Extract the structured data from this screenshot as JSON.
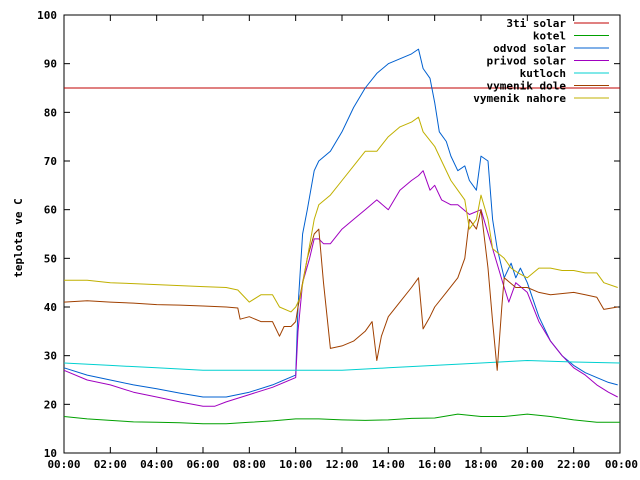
{
  "chart_data": {
    "type": "line",
    "title": "",
    "xlabel": "",
    "ylabel": "teplota ve C",
    "xlim": [
      0,
      24
    ],
    "ylim": [
      10,
      100
    ],
    "x_ticks": [
      {
        "value": 0,
        "label": "00:00"
      },
      {
        "value": 2,
        "label": "02:00"
      },
      {
        "value": 4,
        "label": "04:00"
      },
      {
        "value": 6,
        "label": "06:00"
      },
      {
        "value": 8,
        "label": "08:00"
      },
      {
        "value": 10,
        "label": "10:00"
      },
      {
        "value": 12,
        "label": "12:00"
      },
      {
        "value": 14,
        "label": "14:00"
      },
      {
        "value": 16,
        "label": "16:00"
      },
      {
        "value": 18,
        "label": "18:00"
      },
      {
        "value": 20,
        "label": "20:00"
      },
      {
        "value": 22,
        "label": "22:00"
      },
      {
        "value": 24,
        "label": "00:00"
      }
    ],
    "y_ticks": [
      10,
      20,
      30,
      40,
      50,
      60,
      70,
      80,
      90,
      100
    ],
    "grid": false,
    "legend": "top-right",
    "series": [
      {
        "name": "3ti solar",
        "color": "#c00000",
        "points": [
          [
            0,
            85
          ],
          [
            24,
            85
          ]
        ]
      },
      {
        "name": "kotel",
        "color": "#00a000",
        "points": [
          [
            0,
            17.5
          ],
          [
            1,
            17
          ],
          [
            2,
            16.7
          ],
          [
            3,
            16.4
          ],
          [
            4,
            16.3
          ],
          [
            5,
            16.2
          ],
          [
            6,
            16
          ],
          [
            7,
            16
          ],
          [
            8,
            16.3
          ],
          [
            9,
            16.6
          ],
          [
            10,
            17
          ],
          [
            11,
            17
          ],
          [
            12,
            16.8
          ],
          [
            13,
            16.7
          ],
          [
            14,
            16.8
          ],
          [
            15,
            17.1
          ],
          [
            16,
            17.2
          ],
          [
            17,
            18
          ],
          [
            18,
            17.5
          ],
          [
            19,
            17.5
          ],
          [
            20,
            18
          ],
          [
            21,
            17.5
          ],
          [
            22,
            16.8
          ],
          [
            23,
            16.3
          ],
          [
            24,
            16.3
          ]
        ]
      },
      {
        "name": "odvod solar",
        "color": "#0060d0",
        "points": [
          [
            0,
            27.5
          ],
          [
            1,
            26
          ],
          [
            2,
            25
          ],
          [
            3,
            24
          ],
          [
            4,
            23.2
          ],
          [
            5,
            22.3
          ],
          [
            6,
            21.5
          ],
          [
            7,
            21.5
          ],
          [
            8,
            22.5
          ],
          [
            9,
            24
          ],
          [
            10,
            26
          ],
          [
            10.1,
            40
          ],
          [
            10.3,
            55
          ],
          [
            10.5,
            60
          ],
          [
            10.8,
            68
          ],
          [
            11,
            70
          ],
          [
            11.5,
            72
          ],
          [
            12,
            76
          ],
          [
            12.5,
            81
          ],
          [
            13,
            85
          ],
          [
            13.5,
            88
          ],
          [
            14,
            90
          ],
          [
            14.5,
            91
          ],
          [
            15,
            92
          ],
          [
            15.3,
            93
          ],
          [
            15.5,
            89
          ],
          [
            15.8,
            87
          ],
          [
            16,
            82
          ],
          [
            16.2,
            76
          ],
          [
            16.5,
            74
          ],
          [
            16.7,
            71
          ],
          [
            17,
            68
          ],
          [
            17.3,
            69
          ],
          [
            17.5,
            66
          ],
          [
            17.8,
            64
          ],
          [
            18,
            71
          ],
          [
            18.3,
            70
          ],
          [
            18.5,
            58
          ],
          [
            18.7,
            52
          ],
          [
            19,
            46
          ],
          [
            19.3,
            49
          ],
          [
            19.5,
            46
          ],
          [
            19.7,
            48
          ],
          [
            20,
            45
          ],
          [
            20.5,
            38
          ],
          [
            21,
            33
          ],
          [
            21.5,
            30
          ],
          [
            22,
            28
          ],
          [
            22.5,
            26.5
          ],
          [
            23,
            25.5
          ],
          [
            23.5,
            24.5
          ],
          [
            23.9,
            24
          ]
        ]
      },
      {
        "name": "privod solar",
        "color": "#a000c0",
        "points": [
          [
            0,
            27
          ],
          [
            1,
            25
          ],
          [
            2,
            24
          ],
          [
            3,
            22.5
          ],
          [
            4,
            21.5
          ],
          [
            5,
            20.5
          ],
          [
            6,
            19.6
          ],
          [
            6.5,
            19.6
          ],
          [
            7,
            20.5
          ],
          [
            8,
            22
          ],
          [
            9,
            23.5
          ],
          [
            10,
            25.5
          ],
          [
            10.1,
            35
          ],
          [
            10.3,
            45
          ],
          [
            10.6,
            50
          ],
          [
            10.8,
            54
          ],
          [
            11,
            54
          ],
          [
            11.2,
            53
          ],
          [
            11.5,
            53
          ],
          [
            12,
            56
          ],
          [
            12.5,
            58
          ],
          [
            13,
            60
          ],
          [
            13.5,
            62
          ],
          [
            14,
            60
          ],
          [
            14.5,
            64
          ],
          [
            15,
            66
          ],
          [
            15.3,
            67
          ],
          [
            15.5,
            68
          ],
          [
            15.8,
            64
          ],
          [
            16,
            65
          ],
          [
            16.3,
            62
          ],
          [
            16.7,
            61
          ],
          [
            17,
            61
          ],
          [
            17.5,
            59
          ],
          [
            18,
            60
          ],
          [
            18.5,
            52
          ],
          [
            19,
            44
          ],
          [
            19.2,
            41
          ],
          [
            19.5,
            45
          ],
          [
            20,
            43
          ],
          [
            20.5,
            37
          ],
          [
            21,
            33
          ],
          [
            21.5,
            30
          ],
          [
            22,
            27.5
          ],
          [
            22.5,
            26
          ],
          [
            23,
            24
          ],
          [
            23.5,
            22.5
          ],
          [
            23.9,
            21.5
          ]
        ]
      },
      {
        "name": "kutloch",
        "color": "#00d0d0",
        "points": [
          [
            0,
            28.5
          ],
          [
            2,
            28
          ],
          [
            4,
            27.5
          ],
          [
            6,
            27
          ],
          [
            8,
            27
          ],
          [
            10,
            27
          ],
          [
            12,
            27
          ],
          [
            14,
            27.5
          ],
          [
            16,
            28
          ],
          [
            18,
            28.5
          ],
          [
            20,
            29
          ],
          [
            22,
            28.7
          ],
          [
            24,
            28.5
          ]
        ]
      },
      {
        "name": "vymenik dole",
        "color": "#a04000",
        "points": [
          [
            0,
            41
          ],
          [
            1,
            41.3
          ],
          [
            2,
            41
          ],
          [
            3,
            40.8
          ],
          [
            4,
            40.5
          ],
          [
            5,
            40.4
          ],
          [
            6,
            40.2
          ],
          [
            7,
            40
          ],
          [
            7.5,
            39.8
          ],
          [
            7.6,
            37.5
          ],
          [
            8,
            38
          ],
          [
            8.5,
            37
          ],
          [
            9,
            37
          ],
          [
            9.3,
            34
          ],
          [
            9.5,
            36
          ],
          [
            9.8,
            36
          ],
          [
            10,
            37
          ],
          [
            10.1,
            40
          ],
          [
            10.3,
            45
          ],
          [
            10.5,
            50
          ],
          [
            10.8,
            55
          ],
          [
            11,
            56
          ],
          [
            11.2,
            45
          ],
          [
            11.5,
            31.5
          ],
          [
            12,
            32
          ],
          [
            12.5,
            33
          ],
          [
            13,
            35
          ],
          [
            13.3,
            37
          ],
          [
            13.5,
            29
          ],
          [
            13.7,
            34
          ],
          [
            14,
            38
          ],
          [
            14.5,
            41
          ],
          [
            15,
            44
          ],
          [
            15.3,
            46
          ],
          [
            15.5,
            35.5
          ],
          [
            15.8,
            38
          ],
          [
            16,
            40
          ],
          [
            16.5,
            43
          ],
          [
            17,
            46
          ],
          [
            17.3,
            50
          ],
          [
            17.5,
            58
          ],
          [
            17.8,
            56
          ],
          [
            18,
            60
          ],
          [
            18.3,
            48
          ],
          [
            18.5,
            37
          ],
          [
            18.7,
            27
          ],
          [
            18.9,
            40
          ],
          [
            19,
            46
          ],
          [
            19.5,
            44
          ],
          [
            20,
            44
          ],
          [
            20.5,
            43
          ],
          [
            21,
            42.5
          ],
          [
            22,
            43
          ],
          [
            22.5,
            42.5
          ],
          [
            23,
            42
          ],
          [
            23.3,
            39.5
          ],
          [
            23.9,
            40
          ]
        ]
      },
      {
        "name": "vymenik nahore",
        "color": "#c0b000",
        "points": [
          [
            0,
            45.5
          ],
          [
            1,
            45.5
          ],
          [
            2,
            45
          ],
          [
            3,
            44.8
          ],
          [
            4,
            44.6
          ],
          [
            5,
            44.4
          ],
          [
            6,
            44.2
          ],
          [
            7,
            44
          ],
          [
            7.5,
            43.5
          ],
          [
            8,
            41
          ],
          [
            8.5,
            42.5
          ],
          [
            9,
            42.5
          ],
          [
            9.3,
            40
          ],
          [
            9.8,
            39
          ],
          [
            10,
            40
          ],
          [
            10.2,
            42
          ],
          [
            10.5,
            50
          ],
          [
            10.8,
            58
          ],
          [
            11,
            61
          ],
          [
            11.5,
            63
          ],
          [
            12,
            66
          ],
          [
            12.5,
            69
          ],
          [
            13,
            72
          ],
          [
            13.5,
            72
          ],
          [
            14,
            75
          ],
          [
            14.5,
            77
          ],
          [
            15,
            78
          ],
          [
            15.3,
            79
          ],
          [
            15.5,
            76
          ],
          [
            16,
            73
          ],
          [
            16.3,
            70
          ],
          [
            16.7,
            66
          ],
          [
            17,
            64
          ],
          [
            17.3,
            62
          ],
          [
            17.5,
            56
          ],
          [
            17.8,
            58
          ],
          [
            18,
            63
          ],
          [
            18.3,
            58
          ],
          [
            18.5,
            52
          ],
          [
            19,
            50
          ],
          [
            19.3,
            48
          ],
          [
            19.6,
            47
          ],
          [
            20,
            46
          ],
          [
            20.5,
            48
          ],
          [
            21,
            48
          ],
          [
            21.5,
            47.5
          ],
          [
            22,
            47.5
          ],
          [
            22.5,
            47
          ],
          [
            23,
            47
          ],
          [
            23.3,
            45
          ],
          [
            23.9,
            44
          ]
        ]
      }
    ]
  }
}
